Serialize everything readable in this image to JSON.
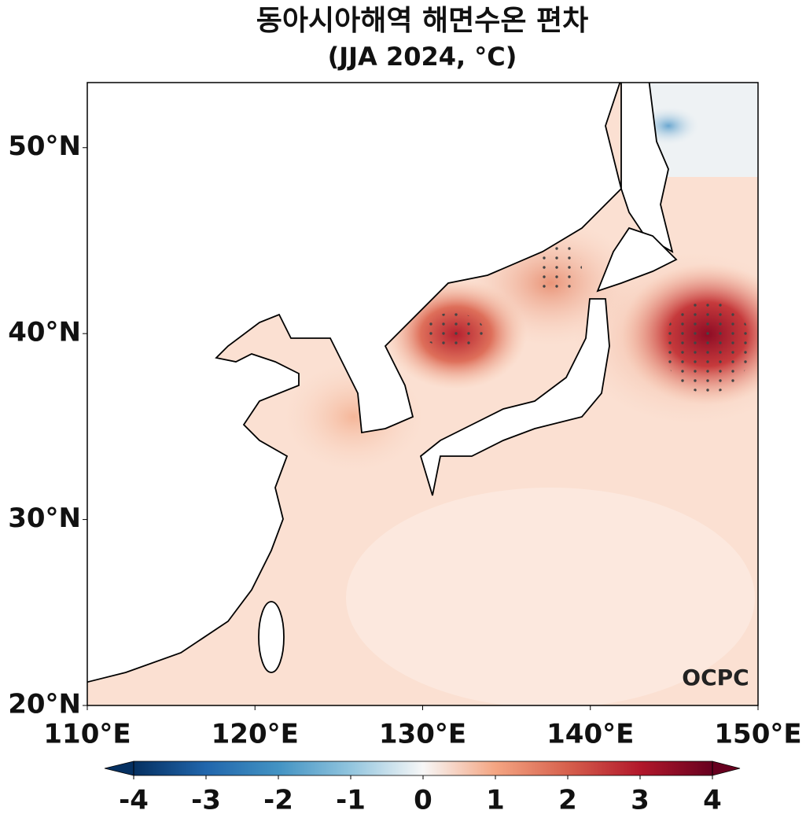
{
  "chart_data": {
    "type": "map",
    "title": "동아시아해역 해면수온 편차",
    "subtitle": "(JJA 2024, °C)",
    "xlim": [
      110,
      150
    ],
    "ylim": [
      20,
      53.5
    ],
    "xticks": [
      {
        "value": 110,
        "label": "110°E"
      },
      {
        "value": 120,
        "label": "120°E"
      },
      {
        "value": 130,
        "label": "130°E"
      },
      {
        "value": 140,
        "label": "140°E"
      },
      {
        "value": 150,
        "label": "150°E"
      }
    ],
    "yticks": [
      {
        "value": 20,
        "label": "20°N"
      },
      {
        "value": 30,
        "label": "30°N"
      },
      {
        "value": 40,
        "label": "40°N"
      },
      {
        "value": 50,
        "label": "50°N"
      }
    ],
    "colorbar": {
      "lim": [
        -4,
        4
      ],
      "ticks": [
        -4,
        -3,
        -2,
        -1,
        0,
        1,
        2,
        3,
        4
      ],
      "colors": [
        "#053061",
        "#2166ac",
        "#4393c3",
        "#92c5de",
        "#f7f7f7",
        "#f4a582",
        "#d6604d",
        "#b2182b",
        "#67001f"
      ],
      "extend": "both"
    },
    "logo": "OCPC"
  }
}
